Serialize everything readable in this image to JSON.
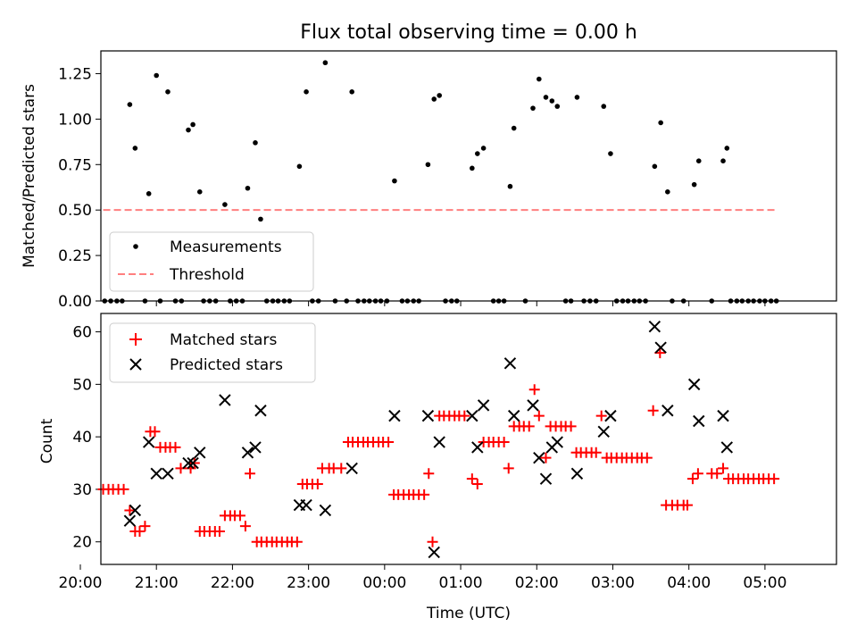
{
  "chart_data": [
    {
      "type": "scatter",
      "title": "Flux total observing time = 0.00 h",
      "ylabel": "Matched/Predicted stars",
      "xlabel": "",
      "xlim": [
        20.27,
        29.94
      ],
      "ylim": [
        0,
        1.375
      ],
      "yticks": [
        0,
        0.25,
        0.5,
        0.75,
        1.0,
        1.25
      ],
      "ytick_labels": [
        "0.00",
        "0.25",
        "0.50",
        "0.75",
        "1.00",
        "1.25"
      ],
      "legend": [
        "Measurements",
        "Threshold"
      ],
      "legend_position": "lower-left",
      "series": [
        {
          "name": "Measurements",
          "color": "#000000",
          "x": [
            20.65,
            20.72,
            20.9,
            21.0,
            21.15,
            21.42,
            21.48,
            21.57,
            21.9,
            22.2,
            22.3,
            22.37,
            22.88,
            22.97,
            23.22,
            23.57,
            24.13,
            24.57,
            24.65,
            24.72,
            25.15,
            25.22,
            25.3,
            25.65,
            25.7,
            25.95,
            26.03,
            26.12,
            26.2,
            26.27,
            26.53,
            26.88,
            26.97,
            27.55,
            27.63,
            27.72,
            28.07,
            28.13,
            28.45,
            28.5
          ],
          "y": [
            1.08,
            0.84,
            0.59,
            1.24,
            1.15,
            0.94,
            0.97,
            0.6,
            0.53,
            0.62,
            0.87,
            0.45,
            0.74,
            1.15,
            1.31,
            1.15,
            0.66,
            0.75,
            1.11,
            1.13,
            0.73,
            0.81,
            0.84,
            0.63,
            0.95,
            1.06,
            1.22,
            1.12,
            1.1,
            1.07,
            1.12,
            1.07,
            0.81,
            0.74,
            0.98,
            0.6,
            0.64,
            0.77,
            0.77,
            0.84
          ]
        },
        {
          "name": "Measurements (zero)",
          "color": "#000000",
          "x": [
            20.32,
            20.4,
            20.48,
            20.55,
            20.85,
            21.05,
            21.25,
            21.33,
            21.62,
            21.7,
            21.78,
            21.97,
            22.05,
            22.13,
            22.45,
            22.53,
            22.6,
            22.68,
            22.75,
            23.05,
            23.13,
            23.35,
            23.5,
            23.65,
            23.73,
            23.8,
            23.88,
            23.95,
            24.03,
            24.23,
            24.3,
            24.38,
            24.45,
            24.8,
            24.88,
            24.95,
            25.43,
            25.5,
            25.57,
            25.85,
            26.38,
            26.45,
            26.62,
            26.7,
            26.78,
            27.05,
            27.13,
            27.2,
            27.28,
            27.35,
            27.43,
            27.78,
            27.93,
            28.3,
            28.55,
            28.63,
            28.7,
            28.78,
            28.85,
            28.93,
            29.0,
            29.08,
            29.15
          ],
          "y": [
            0,
            0,
            0,
            0,
            0,
            0,
            0,
            0,
            0,
            0,
            0,
            0,
            0,
            0,
            0,
            0,
            0,
            0,
            0,
            0,
            0,
            0,
            0,
            0,
            0,
            0,
            0,
            0,
            0,
            0,
            0,
            0,
            0,
            0,
            0,
            0,
            0,
            0,
            0,
            0,
            0,
            0,
            0,
            0,
            0,
            0,
            0,
            0,
            0,
            0,
            0,
            0,
            0,
            0,
            0,
            0,
            0,
            0,
            0,
            0,
            0,
            0,
            0
          ]
        },
        {
          "name": "Threshold",
          "color": "#ff7f7f",
          "style": "dashed",
          "x": [
            20.3,
            29.15
          ],
          "y": [
            0.5,
            0.5
          ]
        }
      ]
    },
    {
      "type": "scatter",
      "title": "",
      "xlabel": "Time (UTC)",
      "ylabel": "Count",
      "xlim": [
        20.27,
        29.94
      ],
      "ylim": [
        15.7,
        63.5
      ],
      "yticks": [
        20,
        30,
        40,
        50,
        60
      ],
      "ytick_labels": [
        "20",
        "30",
        "40",
        "50",
        "60"
      ],
      "xticks": [
        20,
        21,
        22,
        23,
        24,
        25,
        26,
        27,
        28,
        29
      ],
      "xtick_labels": [
        "20:00",
        "21:00",
        "22:00",
        "23:00",
        "00:00",
        "01:00",
        "02:00",
        "03:00",
        "04:00",
        "05:00"
      ],
      "legend": [
        "Matched stars",
        "Predicted stars"
      ],
      "legend_position": "top-left",
      "series": [
        {
          "name": "Matched stars",
          "color": "#ff0000",
          "marker": "plus",
          "x": [
            20.3,
            20.37,
            20.43,
            20.5,
            20.57,
            20.65,
            20.72,
            20.78,
            20.85,
            20.92,
            20.98,
            21.05,
            21.12,
            21.18,
            21.25,
            21.32,
            21.45,
            21.5,
            21.57,
            21.63,
            21.7,
            21.77,
            21.83,
            21.9,
            21.97,
            22.03,
            22.1,
            22.17,
            22.23,
            22.32,
            22.38,
            22.45,
            22.52,
            22.58,
            22.65,
            22.72,
            22.78,
            22.85,
            22.92,
            22.98,
            23.05,
            23.12,
            23.18,
            23.27,
            23.33,
            23.43,
            23.52,
            23.58,
            23.65,
            23.72,
            23.78,
            23.85,
            23.92,
            23.98,
            24.05,
            24.12,
            24.18,
            24.25,
            24.32,
            24.38,
            24.45,
            24.52,
            24.58,
            24.63,
            24.72,
            24.78,
            24.85,
            24.92,
            24.98,
            25.05,
            25.15,
            25.22,
            25.3,
            25.37,
            25.43,
            25.5,
            25.57,
            25.63,
            25.7,
            25.77,
            25.83,
            25.9,
            25.97,
            26.03,
            26.12,
            26.18,
            26.25,
            26.32,
            26.38,
            26.45,
            26.52,
            26.58,
            26.65,
            26.72,
            26.78,
            26.85,
            26.92,
            26.98,
            27.05,
            27.12,
            27.18,
            27.25,
            27.32,
            27.38,
            27.45,
            27.53,
            27.62,
            27.7,
            27.78,
            27.85,
            27.93,
            27.98,
            28.05,
            28.12,
            28.3,
            28.37,
            28.45,
            28.52,
            28.58,
            28.65,
            28.72,
            28.78,
            28.85,
            28.92,
            28.98,
            29.05,
            29.12
          ],
          "y": [
            30,
            30,
            30,
            30,
            30,
            26,
            22,
            22,
            23,
            41,
            41,
            38,
            38,
            38,
            38,
            34,
            34,
            35,
            22,
            22,
            22,
            22,
            22,
            25,
            25,
            25,
            25,
            23,
            33,
            20,
            20,
            20,
            20,
            20,
            20,
            20,
            20,
            20,
            31,
            31,
            31,
            31,
            34,
            34,
            34,
            34,
            39,
            39,
            39,
            39,
            39,
            39,
            39,
            39,
            39,
            29,
            29,
            29,
            29,
            29,
            29,
            29,
            33,
            20,
            44,
            44,
            44,
            44,
            44,
            44,
            32,
            31,
            39,
            39,
            39,
            39,
            39,
            34,
            42,
            42,
            42,
            42,
            49,
            44,
            36,
            42,
            42,
            42,
            42,
            42,
            37,
            37,
            37,
            37,
            37,
            44,
            36,
            36,
            36,
            36,
            36,
            36,
            36,
            36,
            36,
            45,
            56,
            27,
            27,
            27,
            27,
            27,
            32,
            33,
            33,
            33,
            34,
            32,
            32,
            32,
            32,
            32,
            32,
            32,
            32,
            32,
            32
          ]
        },
        {
          "name": "Predicted stars",
          "color": "#000000",
          "marker": "x",
          "x": [
            20.65,
            20.72,
            20.9,
            21.0,
            21.15,
            21.42,
            21.48,
            21.57,
            21.9,
            22.2,
            22.3,
            22.37,
            22.88,
            22.97,
            23.22,
            23.57,
            24.13,
            24.57,
            24.65,
            24.72,
            25.15,
            25.22,
            25.3,
            25.65,
            25.7,
            25.95,
            26.03,
            26.12,
            26.2,
            26.27,
            26.53,
            26.88,
            26.97,
            27.55,
            27.63,
            27.72,
            28.07,
            28.13,
            28.45,
            28.5
          ],
          "y": [
            24,
            26,
            39,
            33,
            33,
            35,
            35,
            37,
            47,
            37,
            38,
            45,
            27,
            27,
            26,
            34,
            44,
            44,
            18,
            39,
            44,
            38,
            46,
            54,
            44,
            46,
            36,
            32,
            38,
            39,
            33,
            41,
            44,
            61,
            57,
            45,
            50,
            43,
            44,
            38
          ]
        }
      ]
    }
  ]
}
